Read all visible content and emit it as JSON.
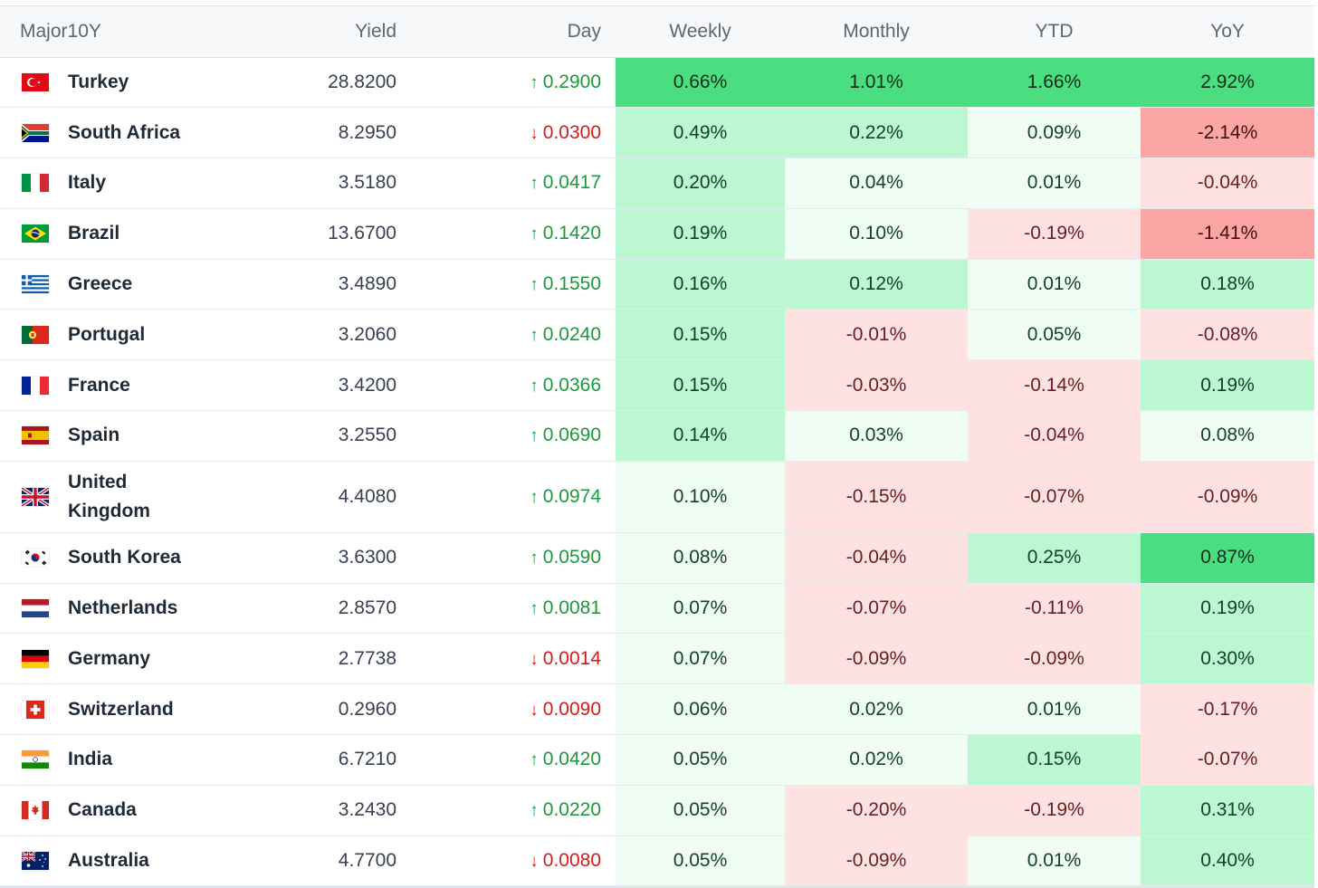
{
  "table": {
    "headers": {
      "name": "Major10Y",
      "yield": "Yield",
      "day": "Day",
      "weekly": "Weekly",
      "monthly": "Monthly",
      "ytd": "YTD",
      "yoy": "YoY"
    },
    "rows": [
      {
        "country": "Turkey",
        "flag": "turkey-flag-icon",
        "yield": "28.8200",
        "day_dir": "up",
        "day": "0.2900",
        "weekly": "0.66%",
        "monthly": "1.01%",
        "ytd": "1.66%",
        "yoy": "2.92%"
      },
      {
        "country": "South Africa",
        "flag": "south-africa-flag-icon",
        "yield": "8.2950",
        "day_dir": "down",
        "day": "0.0300",
        "weekly": "0.49%",
        "monthly": "0.22%",
        "ytd": "0.09%",
        "yoy": "-2.14%"
      },
      {
        "country": "Italy",
        "flag": "italy-flag-icon",
        "yield": "3.5180",
        "day_dir": "up",
        "day": "0.0417",
        "weekly": "0.20%",
        "monthly": "0.04%",
        "ytd": "0.01%",
        "yoy": "-0.04%"
      },
      {
        "country": "Brazil",
        "flag": "brazil-flag-icon",
        "yield": "13.6700",
        "day_dir": "up",
        "day": "0.1420",
        "weekly": "0.19%",
        "monthly": "0.10%",
        "ytd": "-0.19%",
        "yoy": "-1.41%"
      },
      {
        "country": "Greece",
        "flag": "greece-flag-icon",
        "yield": "3.4890",
        "day_dir": "up",
        "day": "0.1550",
        "weekly": "0.16%",
        "monthly": "0.12%",
        "ytd": "0.01%",
        "yoy": "0.18%"
      },
      {
        "country": "Portugal",
        "flag": "portugal-flag-icon",
        "yield": "3.2060",
        "day_dir": "up",
        "day": "0.0240",
        "weekly": "0.15%",
        "monthly": "-0.01%",
        "ytd": "0.05%",
        "yoy": "-0.08%"
      },
      {
        "country": "France",
        "flag": "france-flag-icon",
        "yield": "3.4200",
        "day_dir": "up",
        "day": "0.0366",
        "weekly": "0.15%",
        "monthly": "-0.03%",
        "ytd": "-0.14%",
        "yoy": "0.19%"
      },
      {
        "country": "Spain",
        "flag": "spain-flag-icon",
        "yield": "3.2550",
        "day_dir": "up",
        "day": "0.0690",
        "weekly": "0.14%",
        "monthly": "0.03%",
        "ytd": "-0.04%",
        "yoy": "0.08%"
      },
      {
        "country": "United Kingdom",
        "flag": "united-kingdom-flag-icon",
        "yield": "4.4080",
        "day_dir": "up",
        "day": "0.0974",
        "weekly": "0.10%",
        "monthly": "-0.15%",
        "ytd": "-0.07%",
        "yoy": "-0.09%"
      },
      {
        "country": "South Korea",
        "flag": "south-korea-flag-icon",
        "yield": "3.6300",
        "day_dir": "up",
        "day": "0.0590",
        "weekly": "0.08%",
        "monthly": "-0.04%",
        "ytd": "0.25%",
        "yoy": "0.87%"
      },
      {
        "country": "Netherlands",
        "flag": "netherlands-flag-icon",
        "yield": "2.8570",
        "day_dir": "up",
        "day": "0.0081",
        "weekly": "0.07%",
        "monthly": "-0.07%",
        "ytd": "-0.11%",
        "yoy": "0.19%"
      },
      {
        "country": "Germany",
        "flag": "germany-flag-icon",
        "yield": "2.7738",
        "day_dir": "down",
        "day": "0.0014",
        "weekly": "0.07%",
        "monthly": "-0.09%",
        "ytd": "-0.09%",
        "yoy": "0.30%"
      },
      {
        "country": "Switzerland",
        "flag": "switzerland-flag-icon",
        "yield": "0.2960",
        "day_dir": "down",
        "day": "0.0090",
        "weekly": "0.06%",
        "monthly": "0.02%",
        "ytd": "0.01%",
        "yoy": "-0.17%"
      },
      {
        "country": "India",
        "flag": "india-flag-icon",
        "yield": "6.7210",
        "day_dir": "up",
        "day": "0.0420",
        "weekly": "0.05%",
        "monthly": "0.02%",
        "ytd": "0.15%",
        "yoy": "-0.07%"
      },
      {
        "country": "Canada",
        "flag": "canada-flag-icon",
        "yield": "3.2430",
        "day_dir": "up",
        "day": "0.0220",
        "weekly": "0.05%",
        "monthly": "-0.20%",
        "ytd": "-0.19%",
        "yoy": "0.31%"
      },
      {
        "country": "Australia",
        "flag": "australia-flag-icon",
        "yield": "4.7700",
        "day_dir": "down",
        "day": "0.0080",
        "weekly": "0.05%",
        "monthly": "-0.09%",
        "ytd": "0.01%",
        "yoy": "0.40%"
      }
    ]
  },
  "colors": {
    "up": "#1a9a3c",
    "down": "#d51b1b",
    "heat_strong_green": "#4ade80",
    "heat_green": "#bbf7d0",
    "heat_light_green": "#f0fdf4",
    "heat_light_red": "#fee2e2",
    "heat_red": "#fca5a5"
  }
}
